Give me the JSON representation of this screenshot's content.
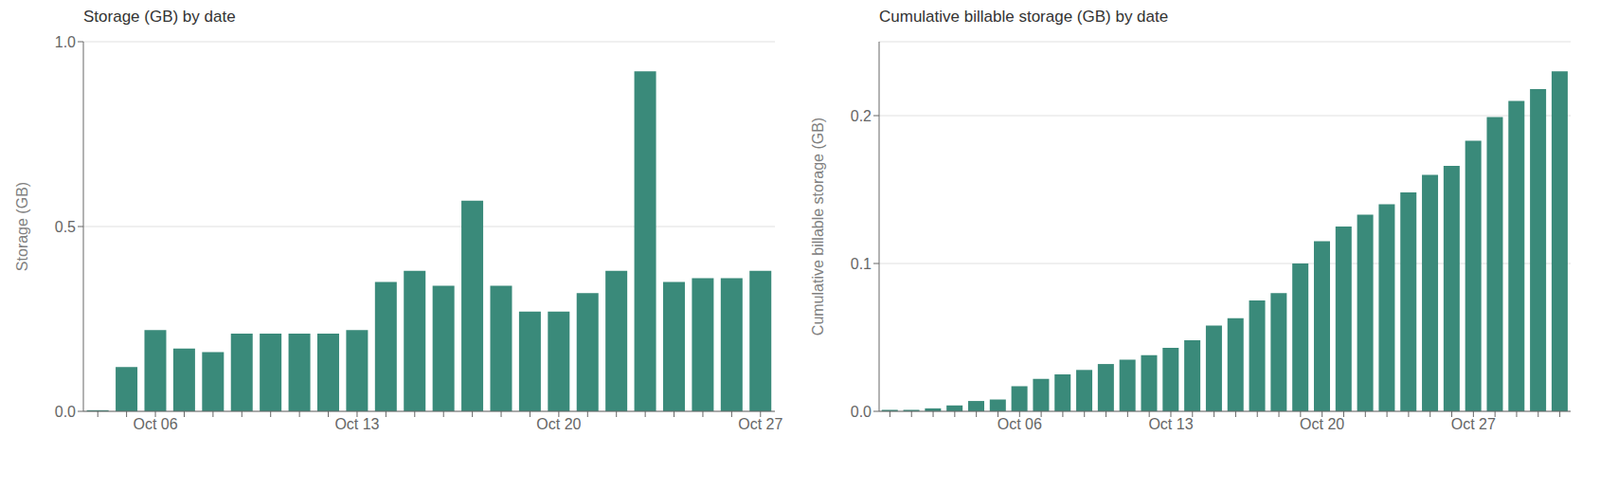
{
  "chart_data": [
    {
      "type": "bar",
      "title": "Storage (GB) by date",
      "ylabel": "Storage (GB)",
      "categories": [
        null,
        null,
        "Oct 06",
        null,
        null,
        null,
        null,
        null,
        null,
        "Oct 13",
        null,
        null,
        null,
        null,
        null,
        null,
        "Oct 20",
        null,
        null,
        null,
        null,
        null,
        null,
        "Oct 27"
      ],
      "values": [
        0.003,
        0.12,
        0.22,
        0.17,
        0.16,
        0.21,
        0.21,
        0.21,
        0.21,
        0.22,
        0.35,
        0.38,
        0.34,
        0.57,
        0.34,
        0.27,
        0.27,
        0.32,
        0.38,
        0.92,
        0.35,
        0.36,
        0.36,
        0.38
      ],
      "color": "#3a8a7a",
      "ylim": [
        0.0,
        1.0
      ],
      "yticks": [
        {
          "value": 0.0,
          "label": "0.0"
        },
        0.5,
        {
          "value": 1.0,
          "label": "1.0"
        }
      ],
      "grid": true
    },
    {
      "type": "bar",
      "title": "Cumulative billable storage (GB) by date",
      "ylabel": "Cumulative billable storage (GB)",
      "categories": [
        null,
        null,
        null,
        null,
        null,
        null,
        "Oct 06",
        null,
        null,
        null,
        null,
        null,
        null,
        "Oct 13",
        null,
        null,
        null,
        null,
        null,
        null,
        "Oct 20",
        null,
        null,
        null,
        null,
        null,
        null,
        "Oct 27",
        null,
        null,
        null,
        null
      ],
      "values": [
        0.001,
        0.001,
        0.002,
        0.004,
        0.007,
        0.008,
        0.017,
        0.022,
        0.025,
        0.028,
        0.032,
        0.035,
        0.038,
        0.043,
        0.048,
        0.058,
        0.063,
        0.075,
        0.08,
        0.1,
        0.115,
        0.125,
        0.133,
        0.14,
        0.148,
        0.16,
        0.166,
        0.183,
        0.199,
        0.21,
        0.218,
        0.23
      ],
      "color": "#3a8a7a",
      "ylim": [
        0.0,
        0.25
      ],
      "yticks": [
        {
          "value": 0.0,
          "label": "0.0"
        },
        0.1,
        0.2
      ],
      "grid": true
    }
  ]
}
